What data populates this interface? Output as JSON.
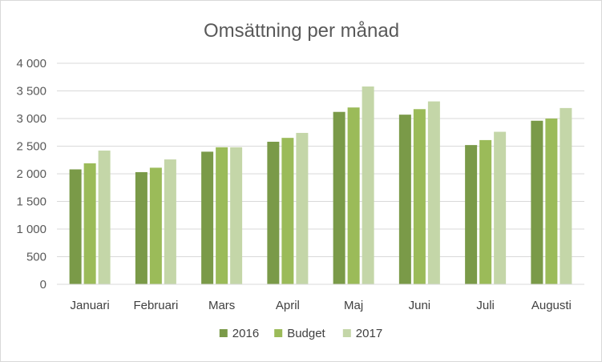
{
  "chart_data": {
    "type": "bar",
    "title": "Omsättning per månad",
    "xlabel": "",
    "ylabel": "",
    "categories": [
      "Januari",
      "Februari",
      "Mars",
      "April",
      "Maj",
      "Juni",
      "Juli",
      "Augusti"
    ],
    "series": [
      {
        "name": "2016",
        "color": "#7a9a48",
        "values": [
          2080,
          2030,
          2400,
          2580,
          3120,
          3070,
          2520,
          2960
        ]
      },
      {
        "name": "Budget",
        "color": "#9bbb59",
        "values": [
          2190,
          2110,
          2480,
          2650,
          3200,
          3170,
          2610,
          3000
        ]
      },
      {
        "name": "2017",
        "color": "#c4d6a8",
        "values": [
          2420,
          2260,
          2480,
          2740,
          3580,
          3310,
          2760,
          3190
        ]
      }
    ],
    "ylim": [
      0,
      4000
    ],
    "yticks": [
      0,
      500,
      1000,
      1500,
      2000,
      2500,
      3000,
      3500,
      4000
    ],
    "ytick_labels": [
      "0",
      "500",
      "1 000",
      "1 500",
      "2 000",
      "2 500",
      "3 000",
      "3 500",
      "4 000"
    ],
    "grid": true,
    "legend_position": "bottom"
  }
}
